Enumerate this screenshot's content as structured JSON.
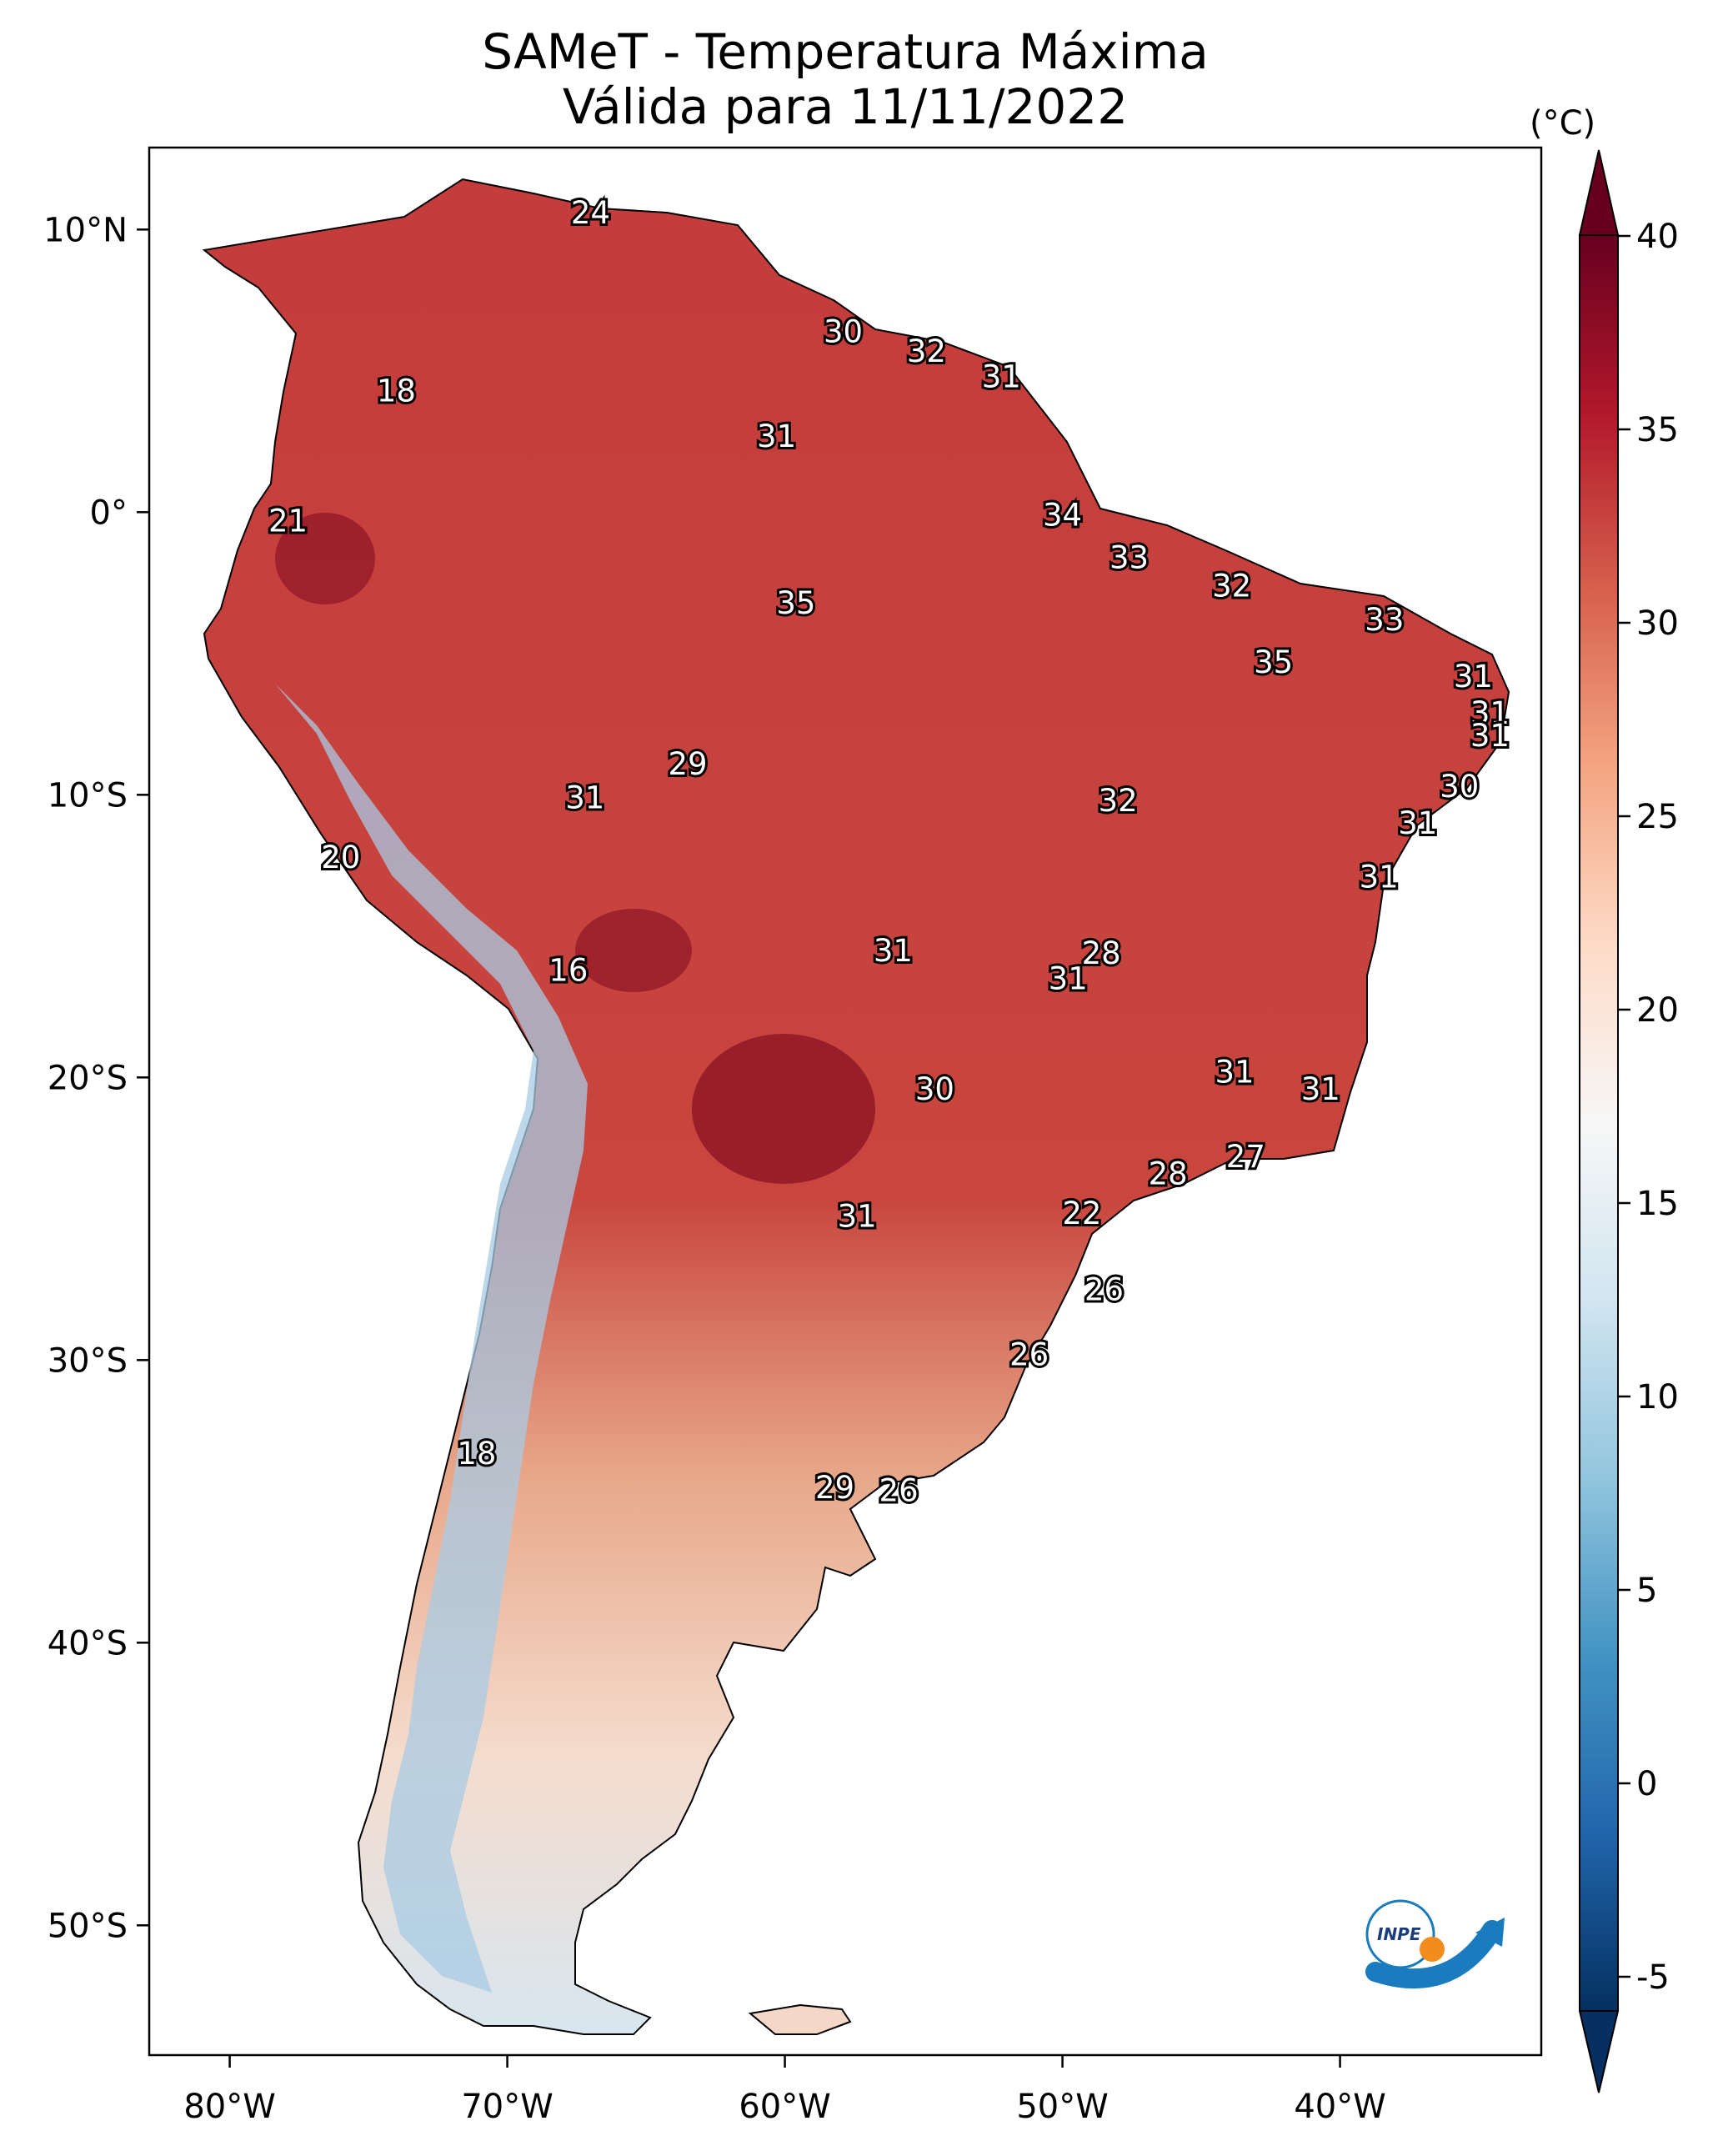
{
  "title": "SAMeT - Temperatura Máxima",
  "subtitle": "Válida para 11/11/2022",
  "colorbar": {
    "unit": "(°C)",
    "ticks": [
      "40",
      "35",
      "30",
      "25",
      "20",
      "15",
      "10",
      "5",
      "0",
      "-5"
    ],
    "range": [
      -5,
      40
    ],
    "colors": [
      "#053061",
      "#2166ac",
      "#4393c3",
      "#92c5de",
      "#d1e5f0",
      "#f7f7f7",
      "#fddbc7",
      "#f4a582",
      "#d6604d",
      "#b2182b",
      "#67001f"
    ]
  },
  "axes": {
    "lon_labels": [
      "80°W",
      "70°W",
      "60°W",
      "50°W",
      "40°W"
    ],
    "lat_labels": [
      "10°N",
      "0°",
      "10°S",
      "20°S",
      "30°S",
      "40°S",
      "50°S"
    ]
  },
  "map_labels": [
    {
      "value": "24",
      "lon": -67,
      "lat": 10.6
    },
    {
      "value": "18",
      "lon": -74,
      "lat": 4.3
    },
    {
      "value": "30",
      "lon": -57.9,
      "lat": 6.4
    },
    {
      "value": "32",
      "lon": -54.9,
      "lat": 5.7
    },
    {
      "value": "31",
      "lon": -52.2,
      "lat": 4.8
    },
    {
      "value": "31",
      "lon": -60.3,
      "lat": 2.7
    },
    {
      "value": "21",
      "lon": -77.9,
      "lat": -0.3
    },
    {
      "value": "34",
      "lon": -50,
      "lat": -0.1
    },
    {
      "value": "33",
      "lon": -47.6,
      "lat": -1.6
    },
    {
      "value": "32",
      "lon": -43.9,
      "lat": -2.6
    },
    {
      "value": "35",
      "lon": -59.6,
      "lat": -3.2
    },
    {
      "value": "33",
      "lon": -38.4,
      "lat": -3.8
    },
    {
      "value": "35",
      "lon": -42.4,
      "lat": -5.3
    },
    {
      "value": "31",
      "lon": -35.2,
      "lat": -5.8
    },
    {
      "value": "31",
      "lon": -34.6,
      "lat": -7.1
    },
    {
      "value": "31",
      "lon": -34.6,
      "lat": -7.9
    },
    {
      "value": "29",
      "lon": -63.5,
      "lat": -8.9
    },
    {
      "value": "30",
      "lon": -35.7,
      "lat": -9.7
    },
    {
      "value": "31",
      "lon": -67.2,
      "lat": -10.1
    },
    {
      "value": "32",
      "lon": -48,
      "lat": -10.2
    },
    {
      "value": "31",
      "lon": -37.2,
      "lat": -11
    },
    {
      "value": "20",
      "lon": -76,
      "lat": -12.2
    },
    {
      "value": "31",
      "lon": -38.6,
      "lat": -12.9
    },
    {
      "value": "31",
      "lon": -56.1,
      "lat": -15.5
    },
    {
      "value": "28",
      "lon": -48.6,
      "lat": -15.6
    },
    {
      "value": "16",
      "lon": -67.8,
      "lat": -16.2
    },
    {
      "value": "31",
      "lon": -49.8,
      "lat": -16.5
    },
    {
      "value": "31",
      "lon": -43.8,
      "lat": -19.8
    },
    {
      "value": "30",
      "lon": -54.6,
      "lat": -20.4
    },
    {
      "value": "31",
      "lon": -40.7,
      "lat": -20.4
    },
    {
      "value": "27",
      "lon": -43.4,
      "lat": -22.8
    },
    {
      "value": "28",
      "lon": -46.2,
      "lat": -23.4
    },
    {
      "value": "31",
      "lon": -57.4,
      "lat": -24.9
    },
    {
      "value": "22",
      "lon": -49.3,
      "lat": -24.8
    },
    {
      "value": "26",
      "lon": -48.5,
      "lat": -27.5
    },
    {
      "value": "26",
      "lon": -51.2,
      "lat": -29.8
    },
    {
      "value": "18",
      "lon": -71.1,
      "lat": -33.3
    },
    {
      "value": "29",
      "lon": -58.2,
      "lat": -34.5
    },
    {
      "value": "26",
      "lon": -55.9,
      "lat": -34.6
    }
  ]
}
